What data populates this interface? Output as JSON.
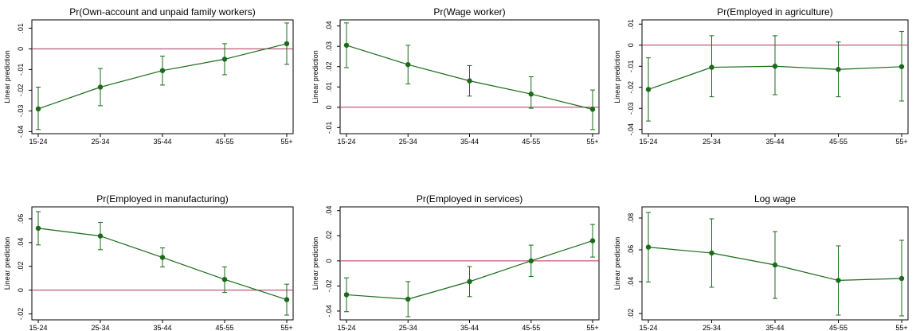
{
  "colors": {
    "series": "#1a6b1a",
    "ref_line": "#b0315a",
    "axis": "#000000",
    "background": "#ffffff"
  },
  "chart_data": [
    {
      "type": "line",
      "title": "Pr(Own-account and unpaid family workers)",
      "xlabel": "",
      "ylabel": "Linear prediction",
      "categories": [
        "15-24",
        "25-34",
        "35-44",
        "45-55",
        "55+"
      ],
      "values": [
        -0.029,
        -0.0185,
        -0.0105,
        -0.005,
        0.0025
      ],
      "ci_low": [
        -0.039,
        -0.0275,
        -0.0175,
        -0.0125,
        -0.0075
      ],
      "ci_high": [
        -0.0185,
        -0.0095,
        -0.0035,
        0.0025,
        0.0125
      ],
      "ylim": [
        -0.041,
        0.014
      ],
      "yticks": [
        -0.04,
        -0.03,
        -0.02,
        -0.01,
        0,
        0.01
      ],
      "ytick_labels": [
        "-.04",
        "-.03",
        "-.02",
        "-.01",
        "0",
        ".01"
      ],
      "ref_line": 0,
      "grid": false
    },
    {
      "type": "line",
      "title": "Pr(Wage worker)",
      "xlabel": "",
      "ylabel": "Linear prediction",
      "categories": [
        "15-24",
        "25-34",
        "35-44",
        "45-55",
        "55+"
      ],
      "values": [
        0.0305,
        0.021,
        0.013,
        0.0065,
        -0.001
      ],
      "ci_low": [
        0.0195,
        0.0115,
        0.0055,
        -0.0005,
        -0.011
      ],
      "ci_high": [
        0.0415,
        0.0305,
        0.0205,
        0.015,
        0.0085
      ],
      "ylim": [
        -0.013,
        0.043
      ],
      "yticks": [
        -0.01,
        0,
        0.01,
        0.02,
        0.03,
        0.04
      ],
      "ytick_labels": [
        "-.01",
        "0",
        ".01",
        ".02",
        ".03",
        ".04"
      ],
      "ref_line": 0,
      "grid": false
    },
    {
      "type": "line",
      "title": "Pr(Employed in agriculture)",
      "xlabel": "",
      "ylabel": "Linear prediction",
      "categories": [
        "15-24",
        "25-34",
        "35-44",
        "45-55",
        "55+"
      ],
      "values": [
        -0.021,
        -0.0105,
        -0.01,
        -0.0115,
        -0.0102
      ],
      "ci_low": [
        -0.036,
        -0.0245,
        -0.0235,
        -0.0245,
        -0.0265
      ],
      "ci_high": [
        -0.006,
        0.0045,
        0.0045,
        0.0015,
        0.0065
      ],
      "ylim": [
        -0.042,
        0.012
      ],
      "yticks": [
        -0.04,
        -0.03,
        -0.02,
        -0.01,
        0,
        0.01
      ],
      "ytick_labels": [
        "-.04",
        "-.03",
        "-.02",
        "-.01",
        "0",
        ".01"
      ],
      "ref_line": 0,
      "grid": false
    },
    {
      "type": "line",
      "title": "Pr(Employed in manufacturing)",
      "xlabel": "",
      "ylabel": "Linear prediction",
      "categories": [
        "15-24",
        "25-34",
        "35-44",
        "45-55",
        "55+"
      ],
      "values": [
        0.052,
        0.0455,
        0.0275,
        0.009,
        -0.008
      ],
      "ci_low": [
        0.038,
        0.034,
        0.0195,
        -0.002,
        -0.021
      ],
      "ci_high": [
        0.066,
        0.057,
        0.0355,
        0.0195,
        0.005
      ],
      "ylim": [
        -0.025,
        0.07
      ],
      "yticks": [
        -0.02,
        0,
        0.02,
        0.04,
        0.06
      ],
      "ytick_labels": [
        "-.02",
        "0",
        ".02",
        ".04",
        ".06"
      ],
      "ref_line": 0,
      "grid": false
    },
    {
      "type": "line",
      "title": "Pr(Employed in services)",
      "xlabel": "",
      "ylabel": "Linear prediction",
      "categories": [
        "15-24",
        "25-34",
        "35-44",
        "45-55",
        "55+"
      ],
      "values": [
        -0.027,
        -0.0305,
        -0.0165,
        0,
        0.016
      ],
      "ci_low": [
        -0.0405,
        -0.0445,
        -0.0285,
        -0.0125,
        0.003
      ],
      "ci_high": [
        -0.0135,
        -0.0165,
        -0.0045,
        0.0125,
        0.029
      ],
      "ylim": [
        -0.047,
        0.043
      ],
      "yticks": [
        -0.04,
        -0.02,
        0,
        0.02,
        0.04
      ],
      "ytick_labels": [
        "-.04",
        "-.02",
        "0",
        ".02",
        ".04"
      ],
      "ref_line": 0,
      "grid": false
    },
    {
      "type": "line",
      "title": "Log wage",
      "xlabel": "",
      "ylabel": "Linear prediction",
      "categories": [
        "15-24",
        "25-34",
        "35-44",
        "45-55",
        "55+"
      ],
      "values": [
        0.0617,
        0.058,
        0.0505,
        0.0408,
        0.042
      ],
      "ci_low": [
        0.0398,
        0.0365,
        0.0295,
        0.019,
        0.0185
      ],
      "ci_high": [
        0.0835,
        0.0795,
        0.0715,
        0.0625,
        0.066
      ],
      "ylim": [
        0.016,
        0.087
      ],
      "yticks": [
        0.02,
        0.04,
        0.06,
        0.08
      ],
      "ytick_labels": [
        ".02",
        ".04",
        ".06",
        ".08"
      ],
      "ref_line": null,
      "grid": false
    }
  ]
}
